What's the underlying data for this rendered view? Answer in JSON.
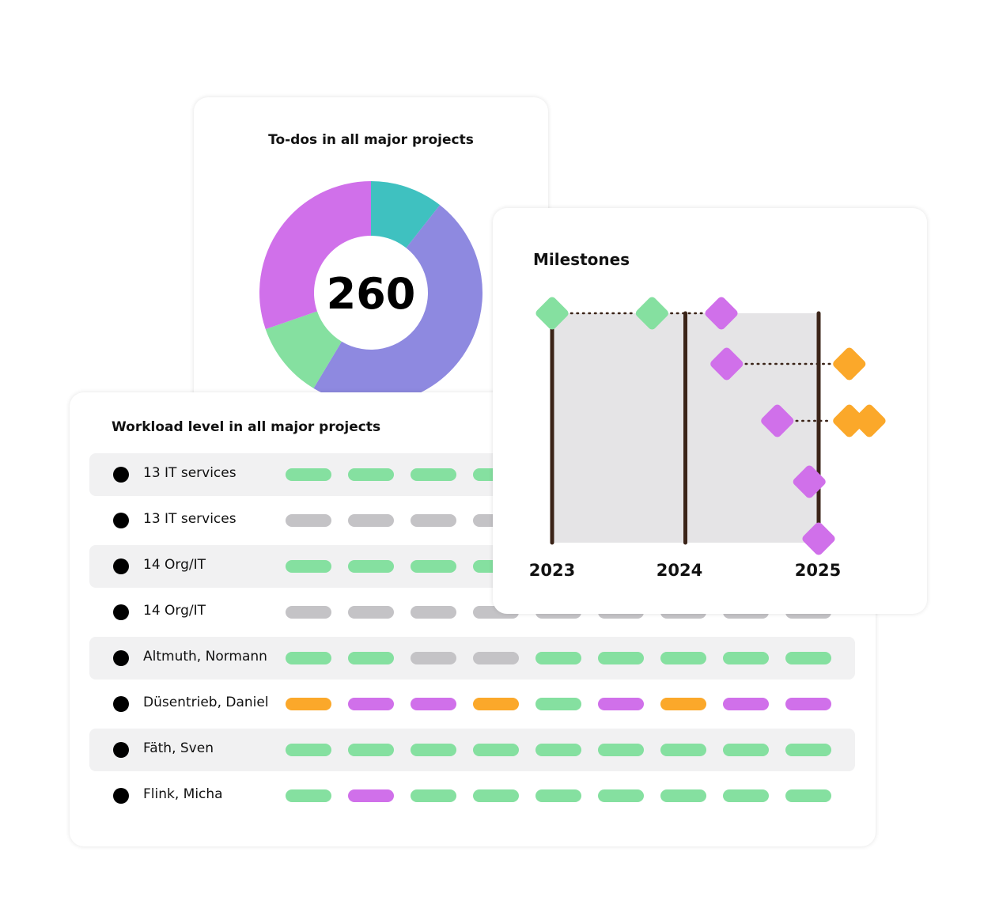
{
  "todos": {
    "title": "To-dos in all major projects",
    "total": "260",
    "chart_data": {
      "type": "pie",
      "donut": true,
      "center_label": "260",
      "slices": [
        {
          "fraction": 0.106,
          "color": "#3fc1c0"
        },
        {
          "fraction": 0.48,
          "color": "#8e89e0"
        },
        {
          "fraction": 0.111,
          "color": "#85e0a0"
        },
        {
          "fraction": 0.303,
          "color": "#d070ea"
        }
      ]
    }
  },
  "workload": {
    "title": "Workload level in all major projects",
    "colors": {
      "green": "#85e0a0",
      "gray": "#c4c3c6",
      "purple": "#d070ea",
      "orange": "#fba82a"
    },
    "rows": [
      {
        "label": "13 IT services",
        "levels": [
          "green",
          "green",
          "green",
          "green",
          "green",
          "green",
          "green",
          "green",
          "green"
        ]
      },
      {
        "label": "13 IT services",
        "levels": [
          "gray",
          "gray",
          "gray",
          "gray",
          "gray",
          "gray",
          "gray",
          "gray",
          "gray"
        ]
      },
      {
        "label": "14 Org/IT",
        "levels": [
          "green",
          "green",
          "green",
          "green",
          "green",
          "green",
          "green",
          "green",
          "green"
        ]
      },
      {
        "label": "14 Org/IT",
        "levels": [
          "gray",
          "gray",
          "gray",
          "gray",
          "gray",
          "gray",
          "gray",
          "gray",
          "gray"
        ]
      },
      {
        "label": "Altmuth, Normann",
        "levels": [
          "green",
          "green",
          "gray",
          "gray",
          "green",
          "green",
          "green",
          "green",
          "green"
        ]
      },
      {
        "label": "Düsentrieb, Daniel",
        "levels": [
          "orange",
          "purple",
          "purple",
          "orange",
          "green",
          "purple",
          "orange",
          "purple",
          "purple"
        ]
      },
      {
        "label": "Fäth, Sven",
        "levels": [
          "green",
          "green",
          "green",
          "green",
          "green",
          "green",
          "green",
          "green",
          "green"
        ]
      },
      {
        "label": "Flink, Micha",
        "levels": [
          "green",
          "purple",
          "green",
          "green",
          "green",
          "green",
          "green",
          "green",
          "green"
        ]
      }
    ]
  },
  "milestones": {
    "title": "Milestones",
    "chart_data": {
      "type": "timeline",
      "years": [
        "2023",
        "2024",
        "2025"
      ],
      "line_color": "#3b2418",
      "shade_color": "#e5e4e6",
      "tracks": [
        {
          "points": [
            {
              "t": 2023.0,
              "color": "#85e0a0"
            },
            {
              "t": 2023.75,
              "color": "#85e0a0"
            },
            {
              "t": 2024.27,
              "color": "#d070ea"
            }
          ]
        },
        {
          "points": [
            {
              "t": 2024.31,
              "color": "#d070ea"
            },
            {
              "t": 2025.23,
              "color": "#fba82a"
            }
          ]
        },
        {
          "points": [
            {
              "t": 2024.69,
              "color": "#d070ea"
            },
            {
              "t": 2025.23,
              "color": "#fba82a"
            },
            {
              "t": 2025.38,
              "color": "#fba82a"
            }
          ]
        },
        {
          "points": [
            {
              "t": 2024.93,
              "color": "#d070ea"
            }
          ]
        },
        {
          "points": [
            {
              "t": 2025.0,
              "color": "#d070ea"
            }
          ]
        }
      ]
    }
  }
}
